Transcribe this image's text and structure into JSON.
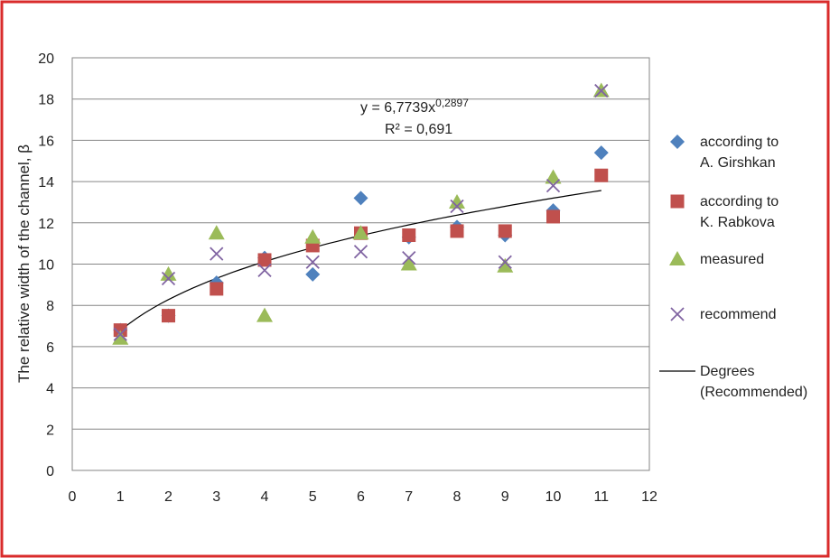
{
  "chart_data": {
    "type": "scatter",
    "title": "",
    "xlabel": "",
    "ylabel": "The relative width of the channel, β",
    "xlim": [
      0,
      12
    ],
    "ylim": [
      0,
      20
    ],
    "x_ticks": [
      "0",
      "1",
      "2",
      "3",
      "4",
      "5",
      "6",
      "7",
      "8",
      "9",
      "10",
      "11",
      "12"
    ],
    "y_ticks": [
      "0",
      "2",
      "4",
      "6",
      "8",
      "10",
      "12",
      "14",
      "16",
      "18",
      "20"
    ],
    "grid": "horizontal",
    "legend_position": "right",
    "series": [
      {
        "name": "according to A. Girshkan",
        "legend_lines": [
          "according to",
          "A. Girshkan"
        ],
        "marker": "diamond",
        "color": "#4f81bd",
        "x": [
          1,
          2,
          3,
          4,
          5,
          6,
          7,
          8,
          9,
          10,
          11
        ],
        "y": [
          6.8,
          7.5,
          9.1,
          10.3,
          9.5,
          13.2,
          11.3,
          11.8,
          11.4,
          12.6,
          15.4
        ]
      },
      {
        "name": "according to K. Rabkova",
        "legend_lines": [
          "according to",
          "K. Rabkova"
        ],
        "marker": "square",
        "color": "#c0504d",
        "x": [
          1,
          2,
          3,
          4,
          5,
          6,
          7,
          8,
          9,
          10,
          11
        ],
        "y": [
          6.8,
          7.5,
          8.8,
          10.2,
          10.9,
          11.5,
          11.4,
          11.6,
          11.6,
          12.3,
          14.3
        ]
      },
      {
        "name": "measured",
        "legend_lines": [
          "measured"
        ],
        "marker": "triangle",
        "color": "#9bbb59",
        "x": [
          1,
          2,
          3,
          4,
          5,
          6,
          7,
          8,
          9,
          10,
          11
        ],
        "y": [
          6.4,
          9.5,
          11.5,
          7.5,
          11.3,
          11.5,
          10.0,
          13.0,
          9.9,
          14.2,
          18.4
        ]
      },
      {
        "name": "recommend",
        "legend_lines": [
          "recommend"
        ],
        "marker": "x",
        "color": "#8064a2",
        "x": [
          1,
          2,
          3,
          4,
          5,
          6,
          7,
          8,
          9,
          10,
          11
        ],
        "y": [
          6.6,
          9.3,
          10.5,
          9.7,
          10.1,
          10.6,
          10.3,
          12.8,
          10.1,
          13.8,
          18.4
        ]
      }
    ],
    "trendline": {
      "name": "Degrees (Recommended)",
      "legend_lines": [
        "Degrees",
        "(Recommended)"
      ],
      "type": "power",
      "coefficient": 6.7739,
      "exponent": 0.2897,
      "x_range": [
        1,
        11
      ],
      "color": "#000000",
      "equation": {
        "prefix": "y = 6,7739x",
        "exponent": "0,2897",
        "r2": "R² = 0,691"
      }
    }
  },
  "colors": {
    "frame_border": "#d92b2b",
    "gridline": "#868686",
    "plot_border": "#868686"
  }
}
